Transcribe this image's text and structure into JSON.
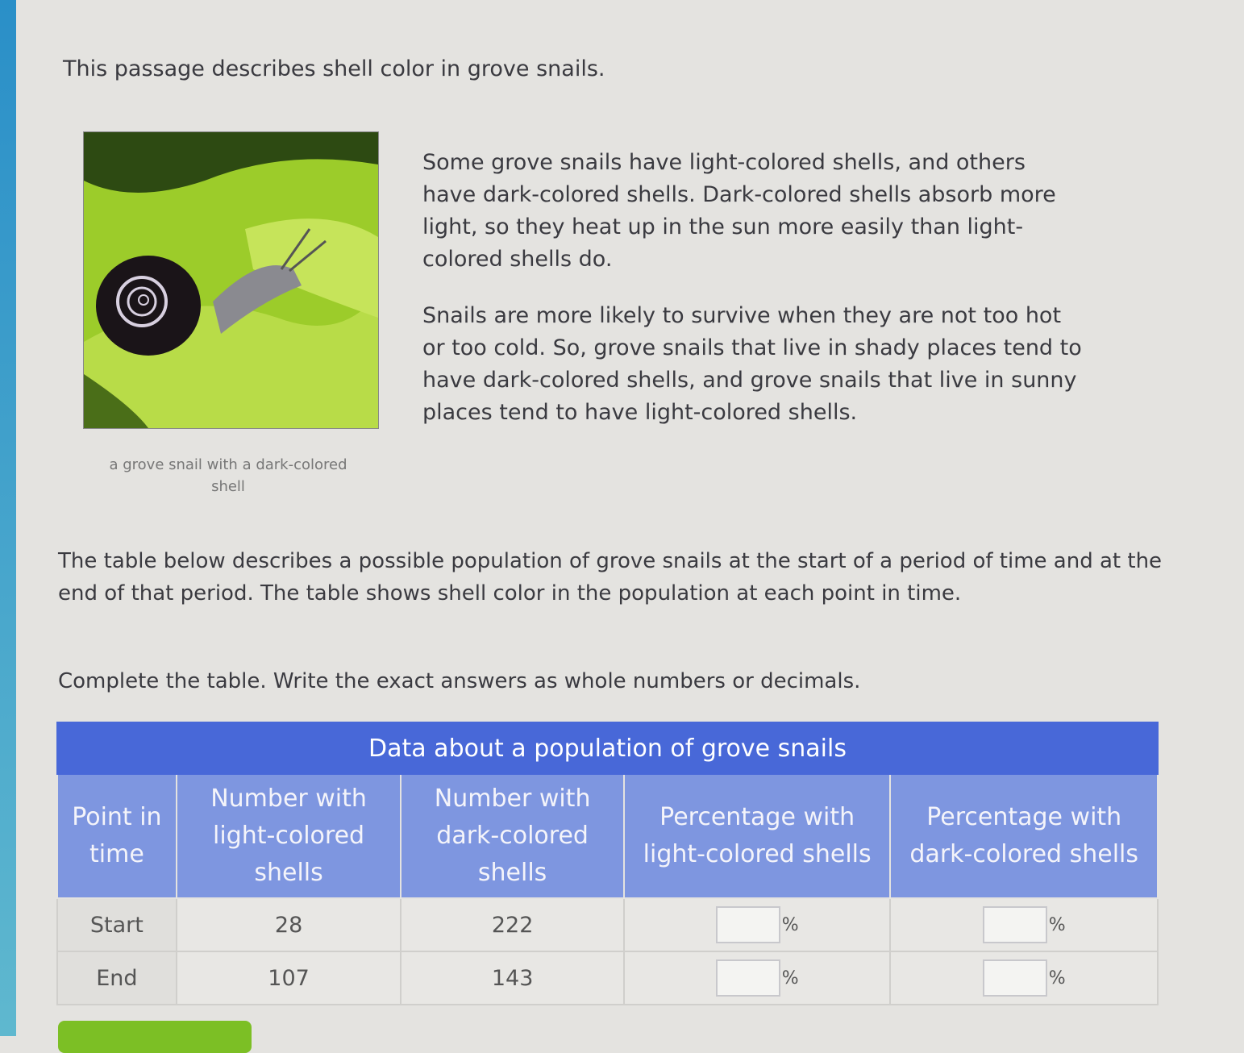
{
  "intro": "This passage describes shell color in grove snails.",
  "image": {
    "caption": "a grove snail with a dark-colored shell",
    "icon": "snail-photo"
  },
  "passage": [
    "Some grove snails have light-colored shells, and others have dark-colored shells. Dark-colored shells absorb more light, so they heat up in the sun more easily than light-colored shells do.",
    "Snails are more likely to survive when they are not too hot or too cold. So, grove snails that live in shady places tend to have dark-colored shells, and grove snails that live in sunny places tend to have light-colored shells."
  ],
  "table_description": "The table below describes a possible population of grove snails at the start of a period of time and at the end of that period. The table shows shell color in the population at each point in time.",
  "instruction": "Complete the table. Write the exact answers as whole numbers or decimals.",
  "table": {
    "title": "Data about a population of grove snails",
    "headers": [
      "Point in time",
      "Number with light-colored shells",
      "Number with dark-colored shells",
      "Percentage with light-colored shells",
      "Percentage with dark-colored shells"
    ],
    "rows": [
      {
        "point": "Start",
        "light": "28",
        "dark": "222",
        "pct_light": "",
        "pct_dark": ""
      },
      {
        "point": "End",
        "light": "107",
        "dark": "143",
        "pct_light": "",
        "pct_dark": ""
      }
    ],
    "percent_sign": "%"
  },
  "colors": {
    "header": "#4868d8",
    "subheader": "#7e96e0",
    "submit": "#7cbf25"
  }
}
